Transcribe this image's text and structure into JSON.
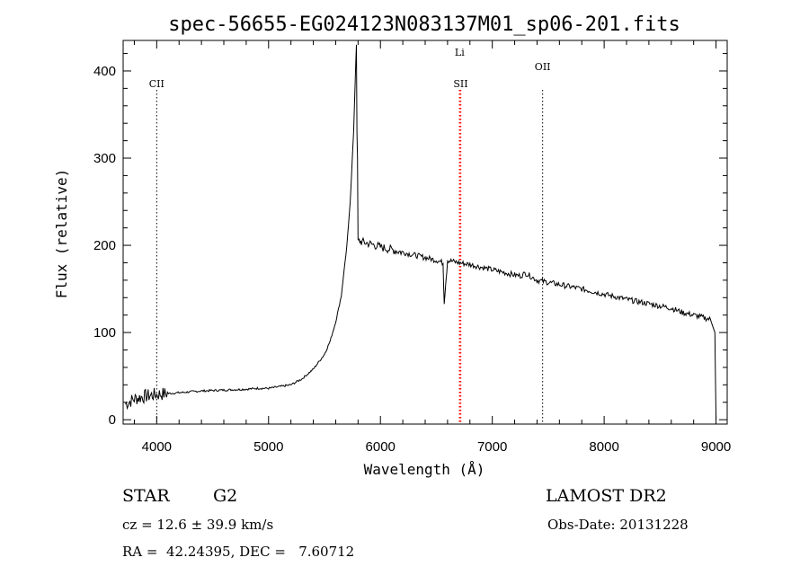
{
  "chart_data": {
    "type": "line",
    "title": "spec-56655-EG024123N083137M01_sp06-201.fits",
    "xlabel": "Wavelength (Å)",
    "ylabel": "Flux (relative)",
    "xlim": [
      3700,
      9100
    ],
    "ylim": [
      -5,
      435
    ],
    "x_ticks": [
      4000,
      5000,
      6000,
      7000,
      8000,
      9000
    ],
    "y_ticks": [
      0,
      100,
      200,
      300,
      400
    ],
    "grid": false,
    "line_color": "#000000",
    "marker_color": "#ff0000",
    "markers": [
      {
        "label": "CII",
        "x": 4000,
        "style": "dotted-black"
      },
      {
        "label": "Li",
        "x": 6708,
        "style": "dotted-red"
      },
      {
        "label": "SII",
        "x": 6717,
        "style": "dotted-red"
      },
      {
        "label": "OII",
        "x": 7450,
        "style": "dotted-black"
      }
    ],
    "series": [
      {
        "x": [
          3720,
          3800,
          3900,
          4000,
          4200,
          4400,
          4600,
          4800,
          4900,
          5000,
          5100,
          5200,
          5300,
          5400,
          5500,
          5550,
          5600,
          5650,
          5700,
          5730,
          5760,
          5775,
          5785,
          5790,
          5795,
          5800,
          5810,
          5830,
          5900,
          6000,
          6200,
          6400,
          6500,
          6560,
          6570,
          6600,
          6700,
          6800,
          7000,
          7200,
          7250,
          7300,
          7400,
          7600,
          7800,
          8000,
          8200,
          8400,
          8600,
          8700,
          8800,
          8950,
          8990,
          9000
        ],
        "y": [
          18,
          24,
          27,
          29,
          31,
          33,
          34,
          35,
          36,
          36,
          38,
          40,
          47,
          58,
          75,
          90,
          112,
          142,
          200,
          250,
          330,
          390,
          430,
          330,
          300,
          207,
          205,
          204,
          202,
          198,
          192,
          186,
          183,
          180,
          135,
          183,
          180,
          178,
          172,
          166,
          165,
          168,
          160,
          155,
          150,
          144,
          138,
          133,
          128,
          123,
          120,
          115,
          100,
          0
        ]
      }
    ]
  },
  "info": {
    "object_type": "STAR",
    "subclass": "G2",
    "survey": "LAMOST DR2",
    "cz": "cz = 12.6 ± 39.9 km/s",
    "obs_date": "Obs-Date: 20131228",
    "coords": "RA =  42.24395, DEC =   7.60712"
  }
}
